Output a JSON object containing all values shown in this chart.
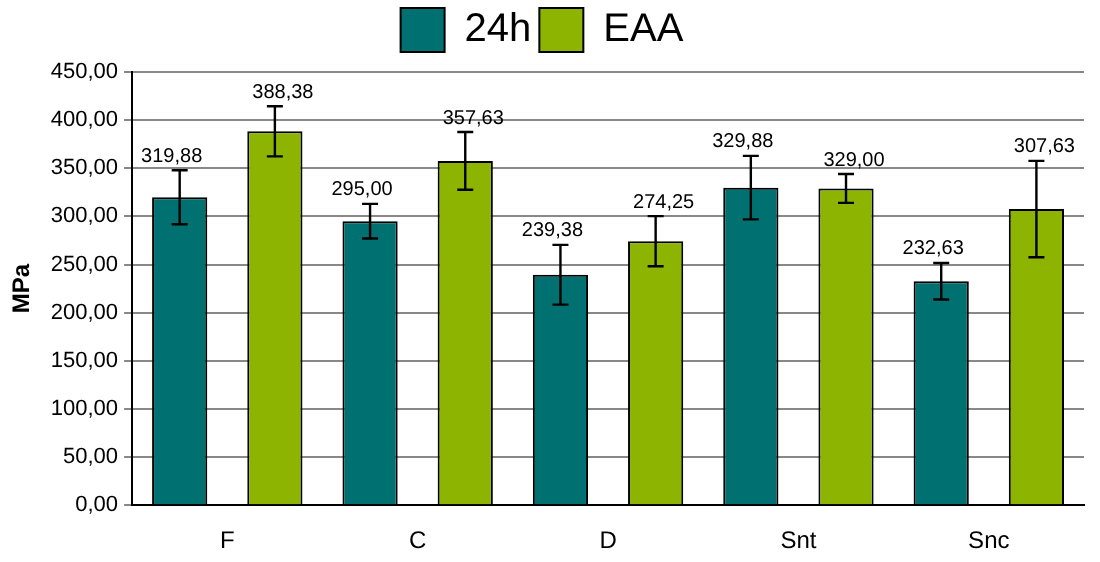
{
  "chart_data": {
    "type": "bar",
    "ylabel": "MPa",
    "categories": [
      "F",
      "C",
      "D",
      "Snt",
      "Snc"
    ],
    "series": [
      {
        "name": "24h",
        "color": "#007070",
        "values": [
          319.88,
          295.0,
          239.38,
          329.88,
          232.63
        ],
        "value_labels": [
          "319,88",
          "295,00",
          "239,38",
          "329,88",
          "232,63"
        ],
        "errors": [
          28,
          18,
          31,
          33,
          19
        ]
      },
      {
        "name": "EAA",
        "color": "#8cb400",
        "values": [
          388.38,
          357.63,
          274.25,
          329.0,
          307.63
        ],
        "value_labels": [
          "388,38",
          "357,63",
          "274,25",
          "329,00",
          "307,63"
        ],
        "errors": [
          26,
          30,
          26,
          15,
          50
        ]
      }
    ],
    "ylim": [
      0,
      450
    ],
    "yticks": [
      {
        "value": 0,
        "label": "0,00"
      },
      {
        "value": 50,
        "label": "50,00"
      },
      {
        "value": 100,
        "label": "100,00"
      },
      {
        "value": 150,
        "label": "150,00"
      },
      {
        "value": 200,
        "label": "200,00"
      },
      {
        "value": 250,
        "label": "250,00"
      },
      {
        "value": 300,
        "label": "300,00"
      },
      {
        "value": 350,
        "label": "350,00"
      },
      {
        "value": 400,
        "label": "400,00"
      },
      {
        "value": 450,
        "label": "450,00"
      }
    ],
    "grid": "y",
    "legend": "top"
  }
}
